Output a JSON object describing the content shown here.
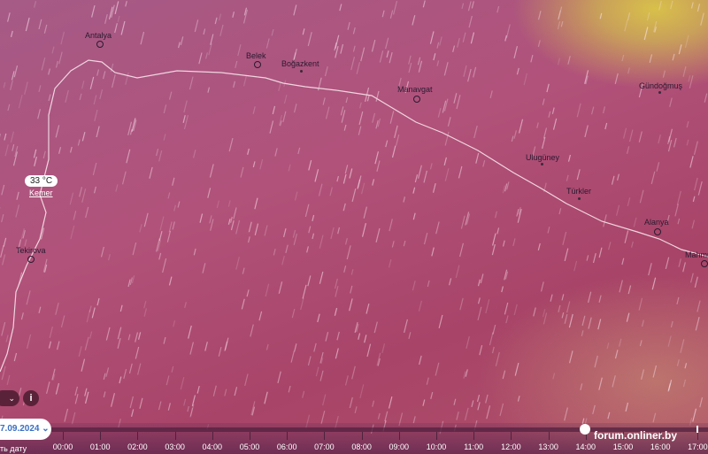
{
  "map": {
    "cities": [
      {
        "name": "Antalya",
        "type": "major"
      },
      {
        "name": "Belek",
        "type": "major"
      },
      {
        "name": "Boğazkent",
        "type": "minor"
      },
      {
        "name": "Manavgat",
        "type": "major"
      },
      {
        "name": "Gündoğmuş",
        "type": "minor"
      },
      {
        "name": "Ulugüney",
        "type": "minor"
      },
      {
        "name": "Türkler",
        "type": "minor"
      },
      {
        "name": "Alanya",
        "type": "major"
      },
      {
        "name": "Mahmu",
        "type": "major"
      },
      {
        "name": "Tekirova",
        "type": "major"
      }
    ],
    "selected": {
      "temperature": "33 °C",
      "city": "Kemer"
    },
    "layer_colors": {
      "sea": "#a84468",
      "land": "#b1527a",
      "hot": "#d8c04a"
    }
  },
  "controls": {
    "dropdown_icon": "chevron-down-icon",
    "info_label": "i"
  },
  "timeline": {
    "date": "7.09.2024",
    "date_sub": "ть дату",
    "hours": [
      "00:00",
      "01:00",
      "02:00",
      "03:00",
      "04:00",
      "05:00",
      "06:00",
      "07:00",
      "08:00",
      "09:00",
      "10:00",
      "11:00",
      "12:00",
      "13:00",
      "14:00",
      "15:00",
      "16:00",
      "17:00"
    ],
    "current": "14:00"
  },
  "watermark": "forum.onliner.by"
}
